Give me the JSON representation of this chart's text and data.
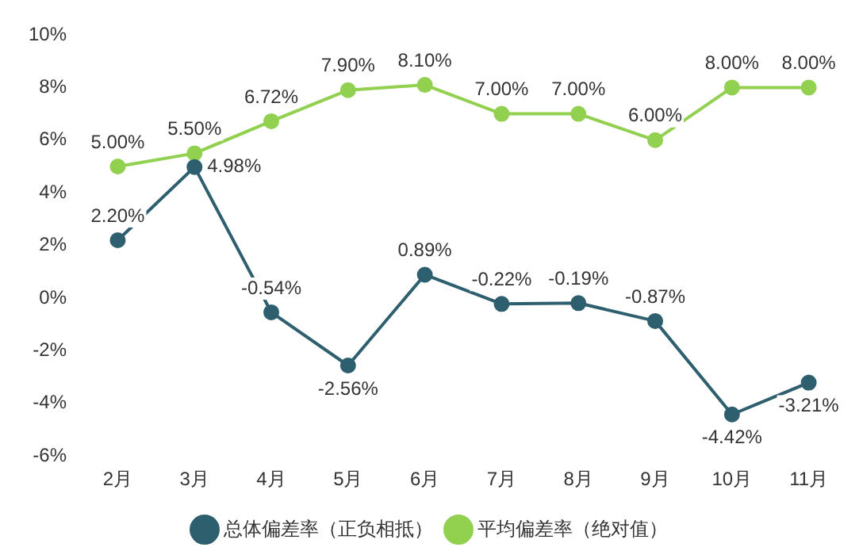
{
  "chart_data": {
    "type": "line",
    "categories": [
      "2月",
      "3月",
      "4月",
      "5月",
      "6月",
      "7月",
      "8月",
      "9月",
      "10月",
      "11月"
    ],
    "series": [
      {
        "name": "总体偏差率（正负相抵）",
        "color": "#2e5f6e",
        "values": [
          2.2,
          4.98,
          -0.54,
          -2.56,
          0.89,
          -0.22,
          -0.19,
          -0.87,
          -4.42,
          -3.21
        ],
        "value_labels": [
          "2.20%",
          "4.98%",
          "-0.54%",
          "-2.56%",
          "0.89%",
          "-0.22%",
          "-0.19%",
          "-0.87%",
          "-4.42%",
          "-3.21%"
        ]
      },
      {
        "name": "平均偏差率（绝对值）",
        "color": "#92d050",
        "values": [
          5.0,
          5.5,
          6.72,
          7.9,
          8.1,
          7.0,
          7.0,
          6.0,
          8.0,
          8.0
        ],
        "value_labels": [
          "5.00%",
          "5.50%",
          "6.72%",
          "7.90%",
          "8.10%",
          "7.00%",
          "7.00%",
          "6.00%",
          "8.00%",
          "8.00%"
        ]
      }
    ],
    "ylim": [
      -6,
      10
    ],
    "yticks": [
      {
        "value": -6,
        "label": "-6%"
      },
      {
        "value": -4,
        "label": "-4%"
      },
      {
        "value": -2,
        "label": "-2%"
      },
      {
        "value": 0,
        "label": "0%"
      },
      {
        "value": 2,
        "label": "2%"
      },
      {
        "value": 4,
        "label": "4%"
      },
      {
        "value": 6,
        "label": "6%"
      },
      {
        "value": 8,
        "label": "8%"
      },
      {
        "value": 10,
        "label": "10%"
      }
    ],
    "grid": false,
    "legend": "bottom",
    "marker": "circle",
    "line_style": "solid"
  }
}
